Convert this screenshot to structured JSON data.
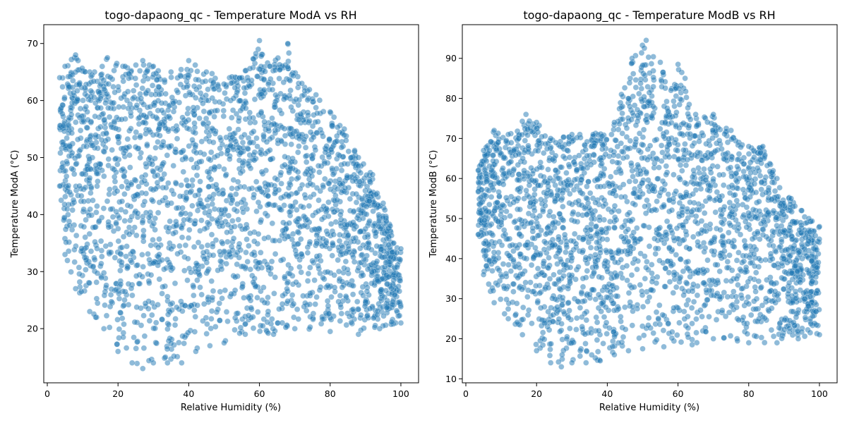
{
  "colors": {
    "point_fill": "#1f77b4",
    "point_edge": "#ffffff",
    "axis": "#000000",
    "background": "#ffffff"
  },
  "chart_data": [
    {
      "type": "scatter",
      "title": "togo-dapaong_qc - Temperature ModA vs RH",
      "xlabel": "Relative Humidity (%)",
      "ylabel": "Temperature ModA (°C)",
      "xlim": [
        -1,
        105
      ],
      "ylim": [
        10.5,
        73.3
      ],
      "xticks": [
        0,
        20,
        40,
        60,
        80,
        100
      ],
      "yticks": [
        20,
        30,
        40,
        50,
        60,
        70
      ],
      "grid": false,
      "series": [
        {
          "marker_alpha": 0.5,
          "x_range": [
            3.5,
            100
          ],
          "y_range": [
            13,
            70.5
          ],
          "upper_envelope": [
            [
              3.5,
              64
            ],
            [
              5,
              66
            ],
            [
              8,
              68
            ],
            [
              12,
              65
            ],
            [
              17,
              67.5
            ],
            [
              22,
              66
            ],
            [
              27,
              67
            ],
            [
              30,
              66
            ],
            [
              35,
              65
            ],
            [
              40,
              67
            ],
            [
              45,
              65
            ],
            [
              55,
              64
            ],
            [
              60,
              70.5
            ],
            [
              63,
              66
            ],
            [
              68,
              70
            ],
            [
              72,
              63
            ],
            [
              76,
              61
            ],
            [
              80,
              58
            ],
            [
              84,
              55
            ],
            [
              88,
              50
            ],
            [
              92,
              47
            ],
            [
              95,
              42
            ],
            [
              97,
              38
            ],
            [
              98,
              35
            ],
            [
              100,
              34
            ]
          ],
          "lower_envelope": [
            [
              3.5,
              45
            ],
            [
              5,
              33
            ],
            [
              8,
              27
            ],
            [
              12,
              23
            ],
            [
              16,
              20
            ],
            [
              20,
              16
            ],
            [
              24,
              14
            ],
            [
              27,
              13
            ],
            [
              30,
              14
            ],
            [
              34,
              14
            ],
            [
              38,
              14
            ],
            [
              42,
              16
            ],
            [
              46,
              17
            ],
            [
              50,
              17.5
            ],
            [
              56,
              19
            ],
            [
              64,
              19
            ],
            [
              70,
              20
            ],
            [
              80,
              19.5
            ],
            [
              88,
              19
            ],
            [
              94,
              20
            ],
            [
              100,
              21
            ]
          ]
        }
      ]
    },
    {
      "type": "scatter",
      "title": "togo-dapaong_qc - Temperature ModB vs RH",
      "xlabel": "Relative Humidity (%)",
      "ylabel": "Temperature ModB (°C)",
      "xlim": [
        -1,
        105
      ],
      "ylim": [
        9,
        98.4
      ],
      "xticks": [
        0,
        20,
        40,
        60,
        80,
        100
      ],
      "yticks": [
        10,
        20,
        30,
        40,
        50,
        60,
        70,
        80,
        90
      ],
      "grid": false,
      "series": [
        {
          "marker_alpha": 0.5,
          "x_range": [
            3.5,
            100
          ],
          "y_range": [
            13,
            94.5
          ],
          "upper_envelope": [
            [
              3.5,
              62
            ],
            [
              5,
              67
            ],
            [
              8,
              72
            ],
            [
              12,
              71
            ],
            [
              17,
              76
            ],
            [
              20,
              74
            ],
            [
              24,
              70
            ],
            [
              30,
              71
            ],
            [
              36,
              71
            ],
            [
              42,
              74
            ],
            [
              44,
              81
            ],
            [
              47,
              90
            ],
            [
              51,
              94.5
            ],
            [
              55,
              89
            ],
            [
              58,
              82
            ],
            [
              60,
              88.5
            ],
            [
              62,
              85
            ],
            [
              65,
              76
            ],
            [
              70,
              76
            ],
            [
              75,
              72
            ],
            [
              80,
              68
            ],
            [
              84,
              68
            ],
            [
              88,
              60
            ],
            [
              92,
              55
            ],
            [
              95,
              52
            ],
            [
              97,
              50
            ],
            [
              100,
              48
            ]
          ],
          "lower_envelope": [
            [
              3.5,
              46
            ],
            [
              5,
              36
            ],
            [
              8,
              29
            ],
            [
              12,
              25
            ],
            [
              16,
              21
            ],
            [
              20,
              17
            ],
            [
              24,
              14
            ],
            [
              27,
              13
            ],
            [
              30,
              14
            ],
            [
              34,
              14
            ],
            [
              38,
              14.5
            ],
            [
              42,
              16
            ],
            [
              46,
              17
            ],
            [
              50,
              17.5
            ],
            [
              56,
              18
            ],
            [
              64,
              18.5
            ],
            [
              70,
              20
            ],
            [
              80,
              19
            ],
            [
              88,
              19
            ],
            [
              94,
              20
            ],
            [
              100,
              21
            ]
          ]
        }
      ]
    }
  ]
}
